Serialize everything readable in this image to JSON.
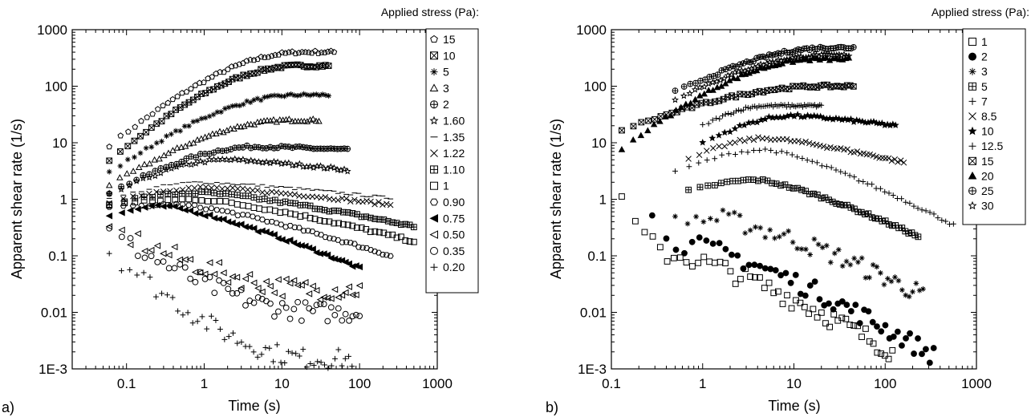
{
  "chart_data": [
    {
      "type": "scatter",
      "panel_label": "a)",
      "xlabel": "Time (s)",
      "ylabel": "Apparent shear rate (1/s)",
      "x_scale": "log",
      "y_scale": "log",
      "xlim": [
        0.02,
        1000
      ],
      "ylim": [
        0.001,
        1000
      ],
      "x_tick_labels": [
        "0.1",
        "1",
        "10",
        "100",
        "1000"
      ],
      "y_tick_labels": [
        "1E-3",
        "0.01",
        "0.1",
        "1",
        "10",
        "100",
        "1000"
      ],
      "legend_title": "Applied stress (Pa):",
      "legend_position": "right",
      "series": [
        {
          "name": "15",
          "marker": "pentagon",
          "curve": {
            "t0": 0.06,
            "t1": 47,
            "y0": 9,
            "y1": 400,
            "tp": 0,
            "yp": 0
          }
        },
        {
          "name": "10",
          "marker": "box-x",
          "curve": {
            "t0": 0.06,
            "t1": 40,
            "y0": 5,
            "y1": 230,
            "tp": 0,
            "yp": 0
          }
        },
        {
          "name": "5",
          "marker": "asterisk",
          "curve": {
            "t0": 0.06,
            "t1": 40,
            "y0": 3,
            "y1": 70,
            "tp": 0,
            "yp": 0
          }
        },
        {
          "name": "3",
          "marker": "triangle",
          "curve": {
            "t0": 0.06,
            "t1": 30,
            "y0": 1.8,
            "y1": 25,
            "tp": 0,
            "yp": 0
          }
        },
        {
          "name": "2",
          "marker": "circle-plus",
          "curve": {
            "t0": 0.06,
            "t1": 70,
            "y0": 1.3,
            "y1": 7.5,
            "tp": 5,
            "yp": 8.5
          }
        },
        {
          "name": "1.60",
          "marker": "star",
          "curve": {
            "t0": 0.06,
            "t1": 70,
            "y0": 1.2,
            "y1": 3.3,
            "tp": 2,
            "yp": 5
          }
        },
        {
          "name": "1.35",
          "marker": "dash",
          "curve": {
            "t0": 0.06,
            "t1": 250,
            "y0": 1.0,
            "y1": 1.05,
            "tp": 1,
            "yp": 2
          }
        },
        {
          "name": "1.22",
          "marker": "cross",
          "curve": {
            "t0": 0.06,
            "t1": 250,
            "y0": 0.9,
            "y1": 0.8,
            "tp": 1,
            "yp": 1.6
          }
        },
        {
          "name": "1.10",
          "marker": "box-plus",
          "curve": {
            "t0": 0.06,
            "t1": 500,
            "y0": 0.85,
            "y1": 0.33,
            "tp": 1,
            "yp": 1.3
          }
        },
        {
          "name": "1",
          "marker": "square",
          "curve": {
            "t0": 0.06,
            "t1": 500,
            "y0": 0.8,
            "y1": 0.18,
            "tp": 0.8,
            "yp": 1.0
          }
        },
        {
          "name": "0.90",
          "marker": "hexagon",
          "curve": {
            "t0": 0.06,
            "t1": 250,
            "y0": 0.7,
            "y1": 0.1,
            "tp": 0.5,
            "yp": 0.8
          }
        },
        {
          "name": "0.75",
          "marker": "left-filled",
          "curve": {
            "t0": 0.06,
            "t1": 100,
            "y0": 0.5,
            "y1": 0.06,
            "tp": 0.3,
            "yp": 0.75
          }
        },
        {
          "name": "0.50",
          "marker": "left-open",
          "curve": {
            "t0": 0.06,
            "t1": 100,
            "y0": 0.3,
            "y1": 0.025,
            "tp": 0,
            "yp": 0
          }
        },
        {
          "name": "0.35",
          "marker": "circle",
          "curve": {
            "t0": 0.06,
            "t1": 100,
            "y0": 0.25,
            "y1": 0.01,
            "tp": 0,
            "yp": 0
          }
        },
        {
          "name": "0.20",
          "marker": "plus",
          "curve": {
            "t0": 0.06,
            "t1": 80,
            "y0": 0.12,
            "y1": 0.0015,
            "tp": 0,
            "yp": 0
          }
        }
      ]
    },
    {
      "type": "scatter",
      "panel_label": "b)",
      "xlabel": "Time (s)",
      "ylabel": "Apparent shear rate (1/s)",
      "x_scale": "log",
      "y_scale": "log",
      "xlim": [
        0.1,
        1000
      ],
      "ylim": [
        0.001,
        1000
      ],
      "x_tick_labels": [
        "0.1",
        "1",
        "10",
        "100",
        "1000"
      ],
      "y_tick_labels": [
        "1E-3",
        "0.01",
        "0.1",
        "1",
        "10",
        "100",
        "1000"
      ],
      "legend_title": "Applied stress (Pa):",
      "legend_position": "right",
      "series": [
        {
          "name": "1",
          "marker": "square",
          "curve": {
            "t0": 0.13,
            "t1": 120,
            "y0": 0.8,
            "y1": 0.002,
            "tp": 0.5,
            "yp": 0.1
          }
        },
        {
          "name": "2",
          "marker": "circle-filled",
          "curve": {
            "t0": 0.28,
            "t1": 340,
            "y0": 0.45,
            "y1": 0.0017,
            "tp": 0.8,
            "yp": 0.15
          }
        },
        {
          "name": "3",
          "marker": "asterisk",
          "curve": {
            "t0": 0.5,
            "t1": 260,
            "y0": 0.45,
            "y1": 0.02,
            "tp": 1.5,
            "yp": 0.45
          }
        },
        {
          "name": "5",
          "marker": "box-plus",
          "curve": {
            "t0": 0.7,
            "t1": 230,
            "y0": 1.4,
            "y1": 0.22,
            "tp": 4,
            "yp": 2.2
          }
        },
        {
          "name": "7",
          "marker": "plus",
          "curve": {
            "t0": 0.5,
            "t1": 560,
            "y0": 3,
            "y1": 0.35,
            "tp": 5,
            "yp": 7.5
          }
        },
        {
          "name": "8.5",
          "marker": "cross",
          "curve": {
            "t0": 0.7,
            "t1": 160,
            "y0": 5,
            "y1": 4.5,
            "tp": 5,
            "yp": 12
          }
        },
        {
          "name": "10",
          "marker": "star-filled",
          "curve": {
            "t0": 1.0,
            "t1": 130,
            "y0": 10,
            "y1": 20,
            "tp": 10,
            "yp": 30
          }
        },
        {
          "name": "12.5",
          "marker": "plus",
          "curve": {
            "t0": 1.0,
            "t1": 20,
            "y0": 20,
            "y1": 45,
            "tp": 5,
            "yp": 45
          }
        },
        {
          "name": "15",
          "marker": "box-x",
          "curve": {
            "t0": 0.13,
            "t1": 45,
            "y0": 17,
            "y1": 100,
            "tp": 0,
            "yp": 0
          }
        },
        {
          "name": "20",
          "marker": "triangle-filled",
          "curve": {
            "t0": 0.13,
            "t1": 40,
            "y0": 8,
            "y1": 300,
            "tp": 0,
            "yp": 0
          }
        },
        {
          "name": "25",
          "marker": "circle-plus",
          "curve": {
            "t0": 0.5,
            "t1": 45,
            "y0": 80,
            "y1": 480,
            "tp": 0,
            "yp": 0
          }
        },
        {
          "name": "30",
          "marker": "star",
          "curve": {
            "t0": 0.5,
            "t1": 40,
            "y0": 60,
            "y1": 350,
            "tp": 0,
            "yp": 0
          }
        }
      ]
    }
  ]
}
